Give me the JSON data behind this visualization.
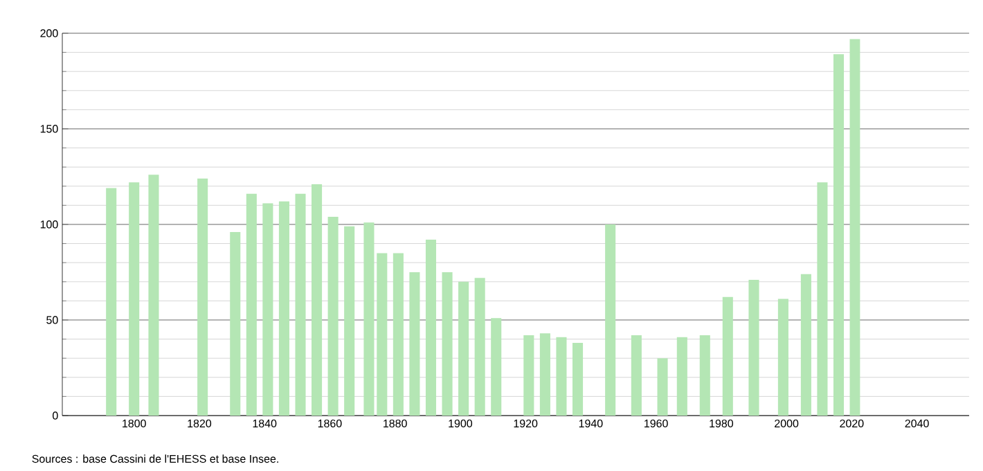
{
  "chart_data": {
    "type": "bar",
    "x": [
      1793,
      1800,
      1806,
      1821,
      1831,
      1836,
      1841,
      1846,
      1851,
      1856,
      1861,
      1866,
      1872,
      1876,
      1881,
      1886,
      1891,
      1896,
      1901,
      1906,
      1911,
      1921,
      1926,
      1931,
      1936,
      1946,
      1954,
      1962,
      1968,
      1975,
      1982,
      1990,
      1999,
      2006,
      2011,
      2016,
      2021
    ],
    "values": [
      119,
      122,
      126,
      124,
      96,
      116,
      111,
      112,
      116,
      121,
      104,
      99,
      101,
      85,
      85,
      75,
      92,
      75,
      70,
      72,
      51,
      42,
      43,
      41,
      38,
      100,
      42,
      30,
      41,
      42,
      62,
      71,
      61,
      74,
      122,
      189,
      197
    ],
    "color": "#b4e6b4",
    "xlim": [
      1778,
      2056
    ],
    "ylim": [
      0,
      200
    ],
    "xticks": [
      1800,
      1820,
      1840,
      1860,
      1880,
      1900,
      1920,
      1940,
      1960,
      1980,
      2000,
      2020,
      2040
    ],
    "yticks": [
      0,
      50,
      100,
      150,
      200
    ],
    "grid": "y",
    "annotations": [
      "Sources : base Cassini de l'EHESS et base Insee."
    ]
  }
}
